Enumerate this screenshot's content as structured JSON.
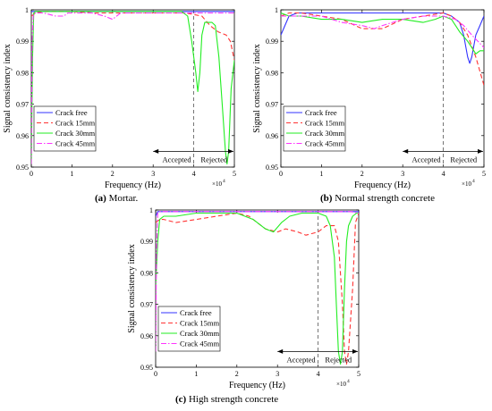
{
  "figure": {
    "captions": [
      {
        "letter": "(a)",
        "text": " Mortar."
      },
      {
        "letter": "(b)",
        "text": " Normal strength concrete"
      },
      {
        "letter": "(c)",
        "text": " High strength concrete"
      }
    ]
  },
  "chart_data": [
    {
      "type": "line",
      "xlabel": "Frequency (Hz)",
      "ylabel": "Signal consistency index",
      "xlim": [
        0,
        50000
      ],
      "ylim": [
        0.95,
        1.0
      ],
      "xticks": [
        0,
        10000,
        20000,
        30000,
        40000,
        50000
      ],
      "xtick_labels": [
        "0",
        "1",
        "2",
        "3",
        "4",
        "5"
      ],
      "x_multiplier": "×10",
      "x_multiplier_exp": "4",
      "yticks": [
        0.95,
        0.96,
        0.97,
        0.98,
        0.99,
        1.0
      ],
      "ytick_labels": [
        "0.95",
        "0.96",
        "0.97",
        "0.98",
        "0.99",
        "1"
      ],
      "threshold_x": 40000,
      "annotations": {
        "accepted": "Accepted",
        "rejected": "Rejected",
        "arrow_from": 30000,
        "arrow_to": 50000,
        "arrow_y": 0.955
      },
      "legend": {
        "position": "bottom-left"
      },
      "series": [
        {
          "name": "Crack free",
          "color": "#3333ff",
          "style": "solid",
          "x": [
            0,
            500,
            1000,
            2000,
            5000,
            10000,
            20000,
            30000,
            40000,
            45000,
            48000,
            50000
          ],
          "y": [
            0.9995,
            0.9995,
            0.9995,
            0.9995,
            0.9995,
            0.9995,
            0.9995,
            0.9995,
            0.9995,
            0.9995,
            0.9995,
            0.9995
          ]
        },
        {
          "name": "Crack 15mm",
          "color": "#ff3333",
          "style": "dashed",
          "x": [
            0,
            500,
            1000,
            3000,
            6000,
            10000,
            15000,
            20000,
            25000,
            30000,
            35000,
            38000,
            40000,
            42000,
            44000,
            46000,
            48000,
            49000,
            50000
          ],
          "y": [
            0.998,
            0.9985,
            0.999,
            0.9995,
            0.9995,
            0.9995,
            0.999,
            0.999,
            0.999,
            0.999,
            0.999,
            0.999,
            0.9985,
            0.998,
            0.995,
            0.993,
            0.992,
            0.99,
            0.984
          ]
        },
        {
          "name": "Crack 30mm",
          "color": "#22ee22",
          "style": "solid",
          "x": [
            0,
            300,
            600,
            1000,
            3000,
            10000,
            20000,
            30000,
            35000,
            37000,
            38500,
            39500,
            40500,
            41000,
            41500,
            42000,
            42700,
            43500,
            44500,
            45300,
            46200,
            47000,
            47800,
            48200,
            48600,
            49200,
            50000
          ],
          "y": [
            0.951,
            0.985,
            0.999,
            0.9995,
            0.9995,
            0.9995,
            0.9995,
            0.9995,
            0.9995,
            0.9995,
            0.998,
            0.99,
            0.98,
            0.974,
            0.98,
            0.992,
            0.996,
            0.996,
            0.996,
            0.995,
            0.985,
            0.97,
            0.955,
            0.951,
            0.955,
            0.975,
            0.984
          ]
        },
        {
          "name": "Crack 45mm",
          "color": "#ff33ff",
          "style": "dashdot",
          "x": [
            0,
            200,
            500,
            1000,
            3000,
            6000,
            8000,
            9000,
            10000,
            15000,
            18000,
            20000,
            22000,
            25000,
            30000,
            35000,
            40000,
            45000,
            50000
          ],
          "y": [
            0.951,
            0.99,
            0.9985,
            0.999,
            0.999,
            0.998,
            0.998,
            0.999,
            0.999,
            0.999,
            0.998,
            0.997,
            0.999,
            0.999,
            0.999,
            0.999,
            0.999,
            0.999,
            0.999
          ]
        }
      ]
    },
    {
      "type": "line",
      "xlabel": "Frequency (Hz)",
      "ylabel": "Signal consistency index",
      "xlim": [
        0,
        50000
      ],
      "ylim": [
        0.95,
        1.0
      ],
      "xticks": [
        0,
        10000,
        20000,
        30000,
        40000,
        50000
      ],
      "xtick_labels": [
        "0",
        "1",
        "2",
        "3",
        "4",
        "5"
      ],
      "x_multiplier": "×10",
      "x_multiplier_exp": "4",
      "yticks": [
        0.95,
        0.96,
        0.97,
        0.98,
        0.99,
        1.0
      ],
      "ytick_labels": [
        "0.95",
        "0.96",
        "0.97",
        "0.98",
        "0.99",
        "1"
      ],
      "threshold_x": 40000,
      "annotations": {
        "accepted": "Accepted",
        "rejected": "Rejected",
        "arrow_from": 30000,
        "arrow_to": 50000,
        "arrow_y": 0.955
      },
      "legend": {
        "position": "bottom-left"
      },
      "series": [
        {
          "name": "Crack free",
          "color": "#3333ff",
          "style": "solid",
          "x": [
            0,
            1000,
            2000,
            4000,
            8000,
            15000,
            25000,
            35000,
            40000,
            42000,
            43000,
            44000,
            45000,
            46000,
            46500,
            47000,
            48000,
            49000,
            50000
          ],
          "y": [
            0.992,
            0.995,
            0.998,
            0.999,
            0.999,
            0.999,
            0.999,
            0.999,
            0.999,
            0.998,
            0.997,
            0.996,
            0.992,
            0.985,
            0.983,
            0.985,
            0.992,
            0.995,
            0.998
          ]
        },
        {
          "name": "Crack 15mm",
          "color": "#ff3333",
          "style": "dashed",
          "x": [
            0,
            2000,
            5000,
            10000,
            15000,
            20000,
            25000,
            30000,
            35000,
            40000,
            42000,
            44000,
            46000,
            48000,
            50000
          ],
          "y": [
            0.998,
            0.999,
            0.999,
            0.998,
            0.997,
            0.994,
            0.994,
            0.997,
            0.998,
            0.999,
            0.998,
            0.996,
            0.992,
            0.985,
            0.976
          ]
        },
        {
          "name": "Crack 30mm",
          "color": "#22ee22",
          "style": "solid",
          "x": [
            0,
            2000,
            5000,
            10000,
            15000,
            20000,
            25000,
            30000,
            35000,
            38000,
            40000,
            42000,
            44000,
            46000,
            47000,
            48000,
            49000,
            50000
          ],
          "y": [
            0.999,
            0.998,
            0.998,
            0.997,
            0.997,
            0.996,
            0.997,
            0.997,
            0.996,
            0.997,
            0.998,
            0.997,
            0.993,
            0.99,
            0.988,
            0.986,
            0.987,
            0.987
          ]
        },
        {
          "name": "Crack 45mm",
          "color": "#ff33ff",
          "style": "dashdot",
          "x": [
            0,
            2000,
            5000,
            10000,
            15000,
            20000,
            23000,
            25000,
            30000,
            35000,
            40000,
            43000,
            45000,
            47000,
            50000
          ],
          "y": [
            0.998,
            0.998,
            0.998,
            0.998,
            0.996,
            0.995,
            0.994,
            0.995,
            0.997,
            0.998,
            0.998,
            0.997,
            0.995,
            0.992,
            0.988
          ]
        }
      ]
    },
    {
      "type": "line",
      "xlabel": "Frequency (Hz)",
      "ylabel": "Signal consistency index",
      "xlim": [
        0,
        50000
      ],
      "ylim": [
        0.95,
        1.0
      ],
      "xticks": [
        0,
        10000,
        20000,
        30000,
        40000,
        50000
      ],
      "xtick_labels": [
        "0",
        "1",
        "2",
        "3",
        "4",
        "5"
      ],
      "x_multiplier": "×10",
      "x_multiplier_exp": "4",
      "yticks": [
        0.95,
        0.96,
        0.97,
        0.98,
        0.99,
        1.0
      ],
      "ytick_labels": [
        "0.95",
        "0.96",
        "0.97",
        "0.98",
        "0.99",
        "1"
      ],
      "threshold_x": 40000,
      "annotations": {
        "accepted": "Accepted",
        "rejected": "Rejected",
        "arrow_from": 30000,
        "arrow_to": 50000,
        "arrow_y": 0.955
      },
      "legend": {
        "position": "bottom-left"
      },
      "series": [
        {
          "name": "Crack free",
          "color": "#3333ff",
          "style": "solid",
          "x": [
            0,
            500,
            1000,
            3000,
            10000,
            20000,
            30000,
            40000,
            45000,
            48000,
            49000,
            50000
          ],
          "y": [
            0.998,
            0.9995,
            0.9995,
            0.9995,
            0.9995,
            0.9995,
            0.9995,
            0.9995,
            0.9995,
            0.9995,
            0.9995,
            0.9995
          ]
        },
        {
          "name": "Crack 15mm",
          "color": "#ff3333",
          "style": "dashed",
          "x": [
            0,
            1000,
            2000,
            5000,
            10000,
            15000,
            20000,
            23000,
            25000,
            27000,
            30000,
            32000,
            35000,
            37000,
            40000,
            42000,
            44000,
            45000,
            46000,
            46500,
            47000,
            47500,
            48500,
            49200,
            50000
          ],
          "y": [
            0.996,
            0.997,
            0.997,
            0.996,
            0.997,
            0.998,
            0.999,
            0.998,
            0.996,
            0.994,
            0.993,
            0.994,
            0.993,
            0.992,
            0.993,
            0.995,
            0.995,
            0.99,
            0.97,
            0.955,
            0.951,
            0.955,
            0.975,
            0.996,
            0.999
          ]
        },
        {
          "name": "Crack 30mm",
          "color": "#22ee22",
          "style": "solid",
          "x": [
            0,
            500,
            1000,
            2000,
            5000,
            10000,
            15000,
            20000,
            24000,
            27000,
            29000,
            31000,
            33000,
            36000,
            40000,
            42000,
            43000,
            44000,
            44500,
            45000,
            45500,
            46000,
            46500,
            47000,
            47500,
            48500,
            49500,
            50000
          ],
          "y": [
            0.975,
            0.99,
            0.997,
            0.998,
            0.998,
            0.999,
            0.999,
            0.999,
            0.997,
            0.994,
            0.993,
            0.996,
            0.998,
            0.999,
            0.999,
            0.998,
            0.995,
            0.985,
            0.97,
            0.955,
            0.951,
            0.955,
            0.975,
            0.99,
            0.995,
            0.998,
            0.999,
            0.999
          ]
        },
        {
          "name": "Crack 45mm",
          "color": "#ff33ff",
          "style": "dashdot",
          "x": [
            0,
            200,
            500,
            1000,
            5000,
            10000,
            20000,
            30000,
            40000,
            45000,
            48000,
            50000
          ],
          "y": [
            0.955,
            0.985,
            0.999,
            0.9995,
            0.9995,
            0.9995,
            0.9995,
            0.9995,
            0.9995,
            0.9995,
            0.9995,
            0.999
          ]
        }
      ]
    }
  ]
}
